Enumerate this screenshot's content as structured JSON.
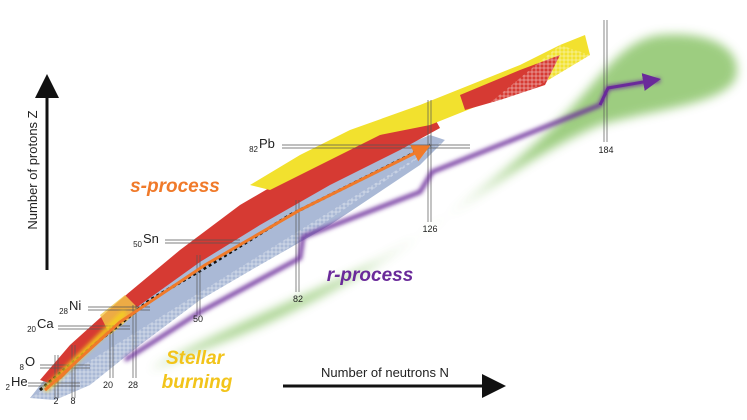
{
  "axes": {
    "y_label": "Number of protons Z",
    "x_label": "Number of neutrons N"
  },
  "processes": {
    "s": "s-process",
    "r": "r-process",
    "stellar": [
      "Stellar",
      "burning"
    ]
  },
  "elements": [
    {
      "z": "2",
      "symbol": "He"
    },
    {
      "z": "8",
      "symbol": "O"
    },
    {
      "z": "20",
      "symbol": "Ca"
    },
    {
      "z": "28",
      "symbol": "Ni"
    },
    {
      "z": "50",
      "symbol": "Sn"
    },
    {
      "z": "82",
      "symbol": "Pb"
    }
  ],
  "magic_n": [
    "2",
    "8",
    "20",
    "28",
    "50",
    "82",
    "126",
    "184"
  ]
}
